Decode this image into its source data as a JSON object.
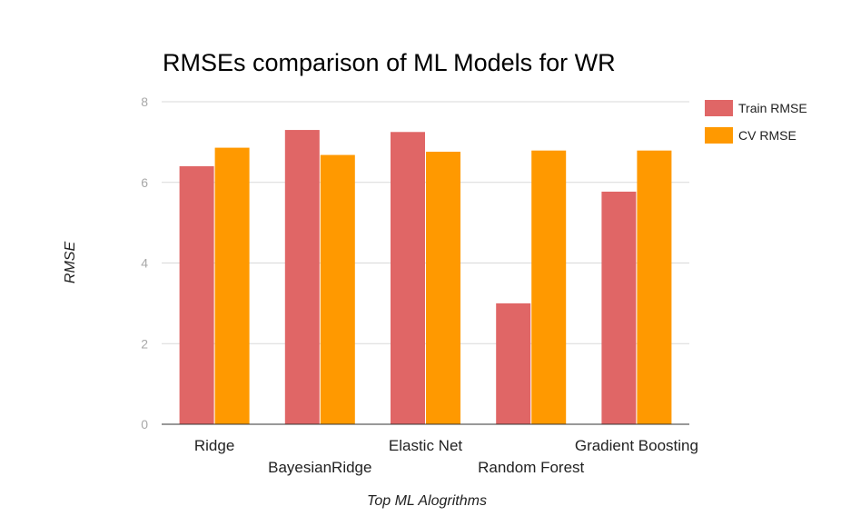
{
  "chart_data": {
    "type": "bar",
    "title": "RMSEs comparison of ML Models for WR",
    "xlabel": "Top ML Alogrithms",
    "ylabel": "RMSE",
    "categories": [
      "Ridge",
      "BayesianRidge",
      "Elastic Net",
      "Random Forest",
      "Gradient Boosting"
    ],
    "series": [
      {
        "name": "Train RMSE",
        "color": "#e06666",
        "values": [
          6.4,
          7.3,
          7.25,
          3.0,
          5.77
        ]
      },
      {
        "name": "CV RMSE",
        "color": "#ff9900",
        "values": [
          6.86,
          6.68,
          6.76,
          6.79,
          6.79
        ]
      }
    ],
    "ylim": [
      0,
      8
    ],
    "yticks": [
      0,
      2,
      4,
      6,
      8
    ],
    "grid": true,
    "legend_position": "right"
  }
}
